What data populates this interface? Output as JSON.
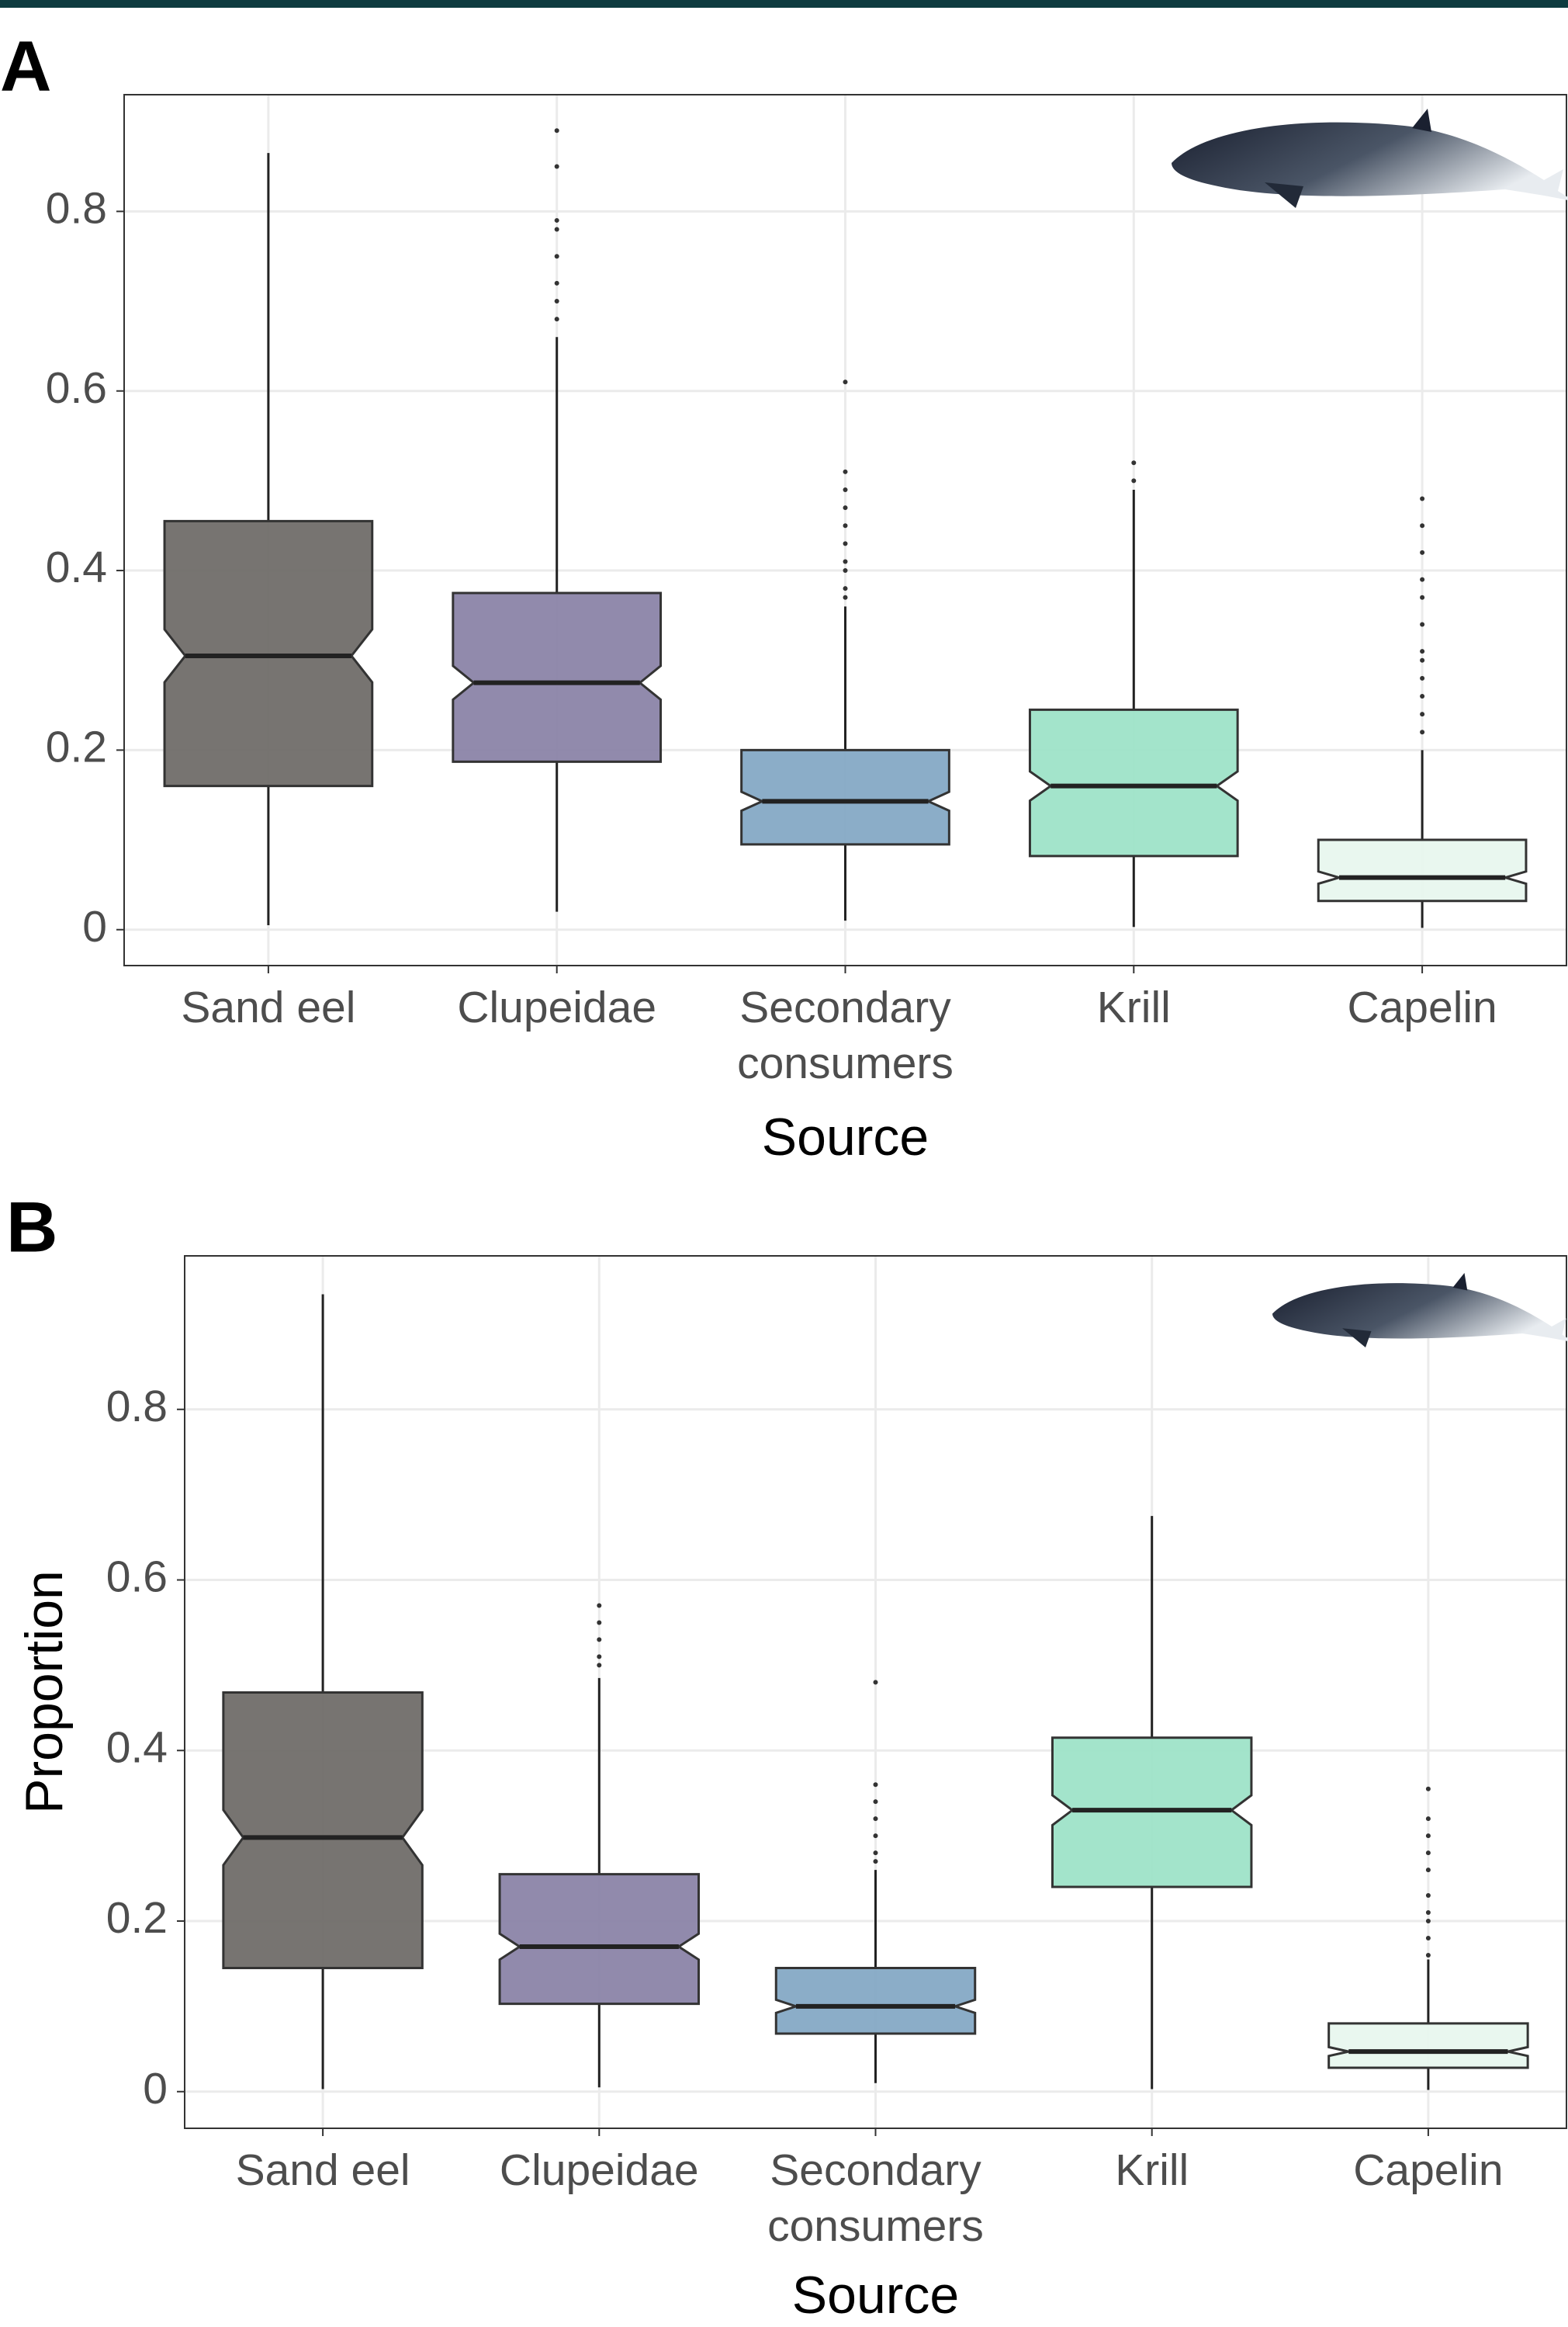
{
  "chart_data": [
    {
      "type": "box",
      "label": "A",
      "xlabel": "Source",
      "categories": [
        "Sand eel",
        "Clupeidae",
        "Secondary consumers",
        "Krill",
        "Capelin"
      ],
      "colors": [
        "#706d69",
        "#8b84a8",
        "#85a9c5",
        "#9ee3c8",
        "#e8f7ee"
      ],
      "stats": [
        {
          "min": 0.005,
          "q1": 0.16,
          "median": 0.305,
          "q3": 0.455,
          "max": 0.865,
          "outliers": []
        },
        {
          "min": 0.02,
          "q1": 0.187,
          "median": 0.275,
          "q3": 0.375,
          "max": 0.66,
          "outliers": [
            0.68,
            0.7,
            0.72,
            0.75,
            0.78,
            0.79,
            0.85,
            0.89
          ]
        },
        {
          "min": 0.01,
          "q1": 0.095,
          "median": 0.143,
          "q3": 0.2,
          "max": 0.36,
          "outliers": [
            0.37,
            0.38,
            0.4,
            0.41,
            0.43,
            0.45,
            0.47,
            0.49,
            0.51,
            0.61
          ]
        },
        {
          "min": 0.003,
          "q1": 0.082,
          "median": 0.16,
          "q3": 0.245,
          "max": 0.49,
          "outliers": [
            0.5,
            0.52
          ]
        },
        {
          "min": 0.002,
          "q1": 0.032,
          "median": 0.058,
          "q3": 0.1,
          "max": 0.2,
          "outliers": [
            0.22,
            0.24,
            0.26,
            0.28,
            0.3,
            0.31,
            0.34,
            0.37,
            0.39,
            0.42,
            0.45,
            0.48
          ]
        }
      ],
      "ylim": [
        -0.04,
        0.93
      ],
      "yticks": [
        0.0,
        0.2,
        0.4,
        0.6,
        0.8
      ],
      "grid": true
    },
    {
      "type": "box",
      "label": "B",
      "xlabel": "Source",
      "ylabel": "Proportion",
      "categories": [
        "Sand eel",
        "Clupeidae",
        "Secondary consumers",
        "Krill",
        "Capelin"
      ],
      "colors": [
        "#706d69",
        "#8b84a8",
        "#85a9c5",
        "#9ee3c8",
        "#e8f7ee"
      ],
      "stats": [
        {
          "min": 0.003,
          "q1": 0.145,
          "median": 0.298,
          "q3": 0.468,
          "max": 0.935,
          "outliers": []
        },
        {
          "min": 0.005,
          "q1": 0.103,
          "median": 0.17,
          "q3": 0.255,
          "max": 0.485,
          "outliers": [
            0.5,
            0.51,
            0.53,
            0.55,
            0.57
          ]
        },
        {
          "min": 0.01,
          "q1": 0.068,
          "median": 0.1,
          "q3": 0.145,
          "max": 0.26,
          "outliers": [
            0.27,
            0.28,
            0.3,
            0.32,
            0.34,
            0.36,
            0.48
          ]
        },
        {
          "min": 0.003,
          "q1": 0.24,
          "median": 0.33,
          "q3": 0.415,
          "max": 0.675,
          "outliers": []
        },
        {
          "min": 0.002,
          "q1": 0.028,
          "median": 0.047,
          "q3": 0.08,
          "max": 0.155,
          "outliers": [
            0.16,
            0.18,
            0.2,
            0.21,
            0.23,
            0.26,
            0.28,
            0.3,
            0.32,
            0.355
          ]
        }
      ],
      "ylim": [
        -0.043,
        0.98
      ],
      "yticks": [
        0.0,
        0.2,
        0.4,
        0.6,
        0.8
      ],
      "grid": true
    }
  ]
}
